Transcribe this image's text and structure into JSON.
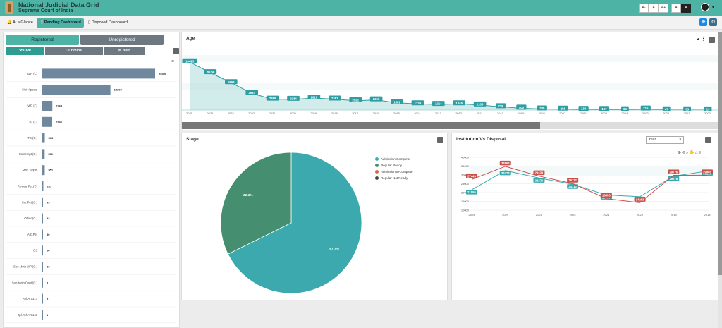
{
  "header": {
    "title": "National Judicial Data Grid",
    "subtitle": "Supreme Court of India",
    "font_buttons": [
      "A-",
      "A",
      "A+",
      "A",
      "A"
    ]
  },
  "nav": {
    "tabs": [
      "At a Glance",
      "Pending Dashboard",
      "Disposed Dashboard"
    ],
    "active": "Pending Dashboard"
  },
  "left": {
    "registered_label": "Registered",
    "unregistered_label": "Unregistered",
    "subtabs": [
      "Civil",
      "Criminal",
      "Both"
    ],
    "rows": [
      {
        "label": "SLP (C)",
        "value": 25490
      },
      {
        "label": "Civil Appeal",
        "value": 15393
      },
      {
        "label": "WP (C)",
        "value": 2268
      },
      {
        "label": "TP (C)",
        "value": 2230
      },
      {
        "label": "TC (C.)",
        "value": 563
      },
      {
        "label": "Contempt (C.)",
        "value": 530
      },
      {
        "label": "Misc. Appln",
        "value": 551
      },
      {
        "label": "Review Pet.(C)",
        "value": 231
      },
      {
        "label": "Cur.Pet.(C.)",
        "value": 93
      },
      {
        "label": "Other (C.)",
        "value": 92
      },
      {
        "label": "Arb.Pet",
        "value": 80
      },
      {
        "label": "OS",
        "value": 50
      },
      {
        "label": "Suo Moto WP (C.)",
        "value": 33
      },
      {
        "label": "Suo Moto Cont.(C.)",
        "value": 8
      },
      {
        "label": "Ref.Art.317",
        "value": 5
      },
      {
        "label": "Spl.Ref.Art.143",
        "value": 1
      }
    ]
  },
  "age": {
    "title": "Age",
    "points": [
      {
        "year": "2025",
        "value": 10493
      },
      {
        "year": "2024",
        "value": 8134
      },
      {
        "year": "2023",
        "value": 5963
      },
      {
        "year": "2022",
        "value": 3634
      },
      {
        "year": "2021",
        "value": 2366
      },
      {
        "year": "2020",
        "value": 2334
      },
      {
        "year": "2019",
        "value": 2619
      },
      {
        "year": "2018",
        "value": 2382
      },
      {
        "year": "2017",
        "value": 2021
      },
      {
        "year": "2016",
        "value": 2215
      },
      {
        "year": "2015",
        "value": 1581
      },
      {
        "year": "2014",
        "value": 1339
      },
      {
        "year": "2013",
        "value": 1214
      },
      {
        "year": "2012",
        "value": 1345
      },
      {
        "year": "2011",
        "value": 1105
      },
      {
        "year": "2010",
        "value": 719
      },
      {
        "year": "2009",
        "value": 400
      },
      {
        "year": "2008",
        "value": 239
      },
      {
        "year": "2007",
        "value": 201
      },
      {
        "year": "2006",
        "value": 133
      },
      {
        "year": "2005",
        "value": 107
      },
      {
        "year": "2004",
        "value": 64
      },
      {
        "year": "2003",
        "value": 215
      },
      {
        "year": "2002",
        "value": 47
      },
      {
        "year": "2001",
        "value": 33
      },
      {
        "year": "2000",
        "value": 13
      }
    ]
  },
  "stage": {
    "title": "Stage",
    "slices": [
      {
        "name": "Admission Complete",
        "pct": "67.7%",
        "value": 0.677,
        "color": "#3ba9ad"
      },
      {
        "name": "Regular Ready",
        "pct": "32.3%",
        "value": 0.323,
        "color": "#458e6f"
      },
      {
        "name": "Admission In-complete",
        "pct": "",
        "value": 0,
        "color": "#d9624a"
      },
      {
        "name": "Regular Not Ready",
        "pct": "",
        "value": 0,
        "color": "#444444"
      }
    ]
  },
  "inst": {
    "title": "Institution Vs Disposal",
    "select": "Year",
    "years": [
      "2025",
      "2024",
      "2023",
      "2022",
      "2021",
      "2020",
      "2019",
      "2018"
    ],
    "ticks": [
      "40000",
      "35000",
      "30000",
      "25000",
      "20000",
      "15000",
      "10000"
    ],
    "institution": [
      {
        "v": 21555,
        "l": "21555"
      },
      {
        "v": 32474,
        "l": "32474"
      },
      {
        "v": 28270,
        "l": "28270"
      },
      {
        "v": 24712,
        "l": "24712"
      },
      {
        "v": 18627,
        "l": "18627"
      },
      {
        "v": 17654,
        "l": "17654"
      },
      {
        "v": 29276,
        "l": "29276"
      },
      {
        "v": 32182,
        "l": "32182"
      }
    ],
    "disposal": [
      {
        "v": 27449,
        "l": "27449"
      },
      {
        "v": 34864,
        "l": "34864"
      },
      {
        "v": 29329,
        "l": "29329"
      },
      {
        "v": 25112,
        "l": "25112"
      },
      {
        "v": 16553,
        "l": "16553"
      },
      {
        "v": 14263,
        "l": "14263"
      },
      {
        "v": 29776,
        "l": "29776"
      },
      {
        "v": 29865,
        "l": "29865"
      }
    ],
    "inst_color": "#3ba9ad",
    "disp_color": "#c9504a"
  }
}
